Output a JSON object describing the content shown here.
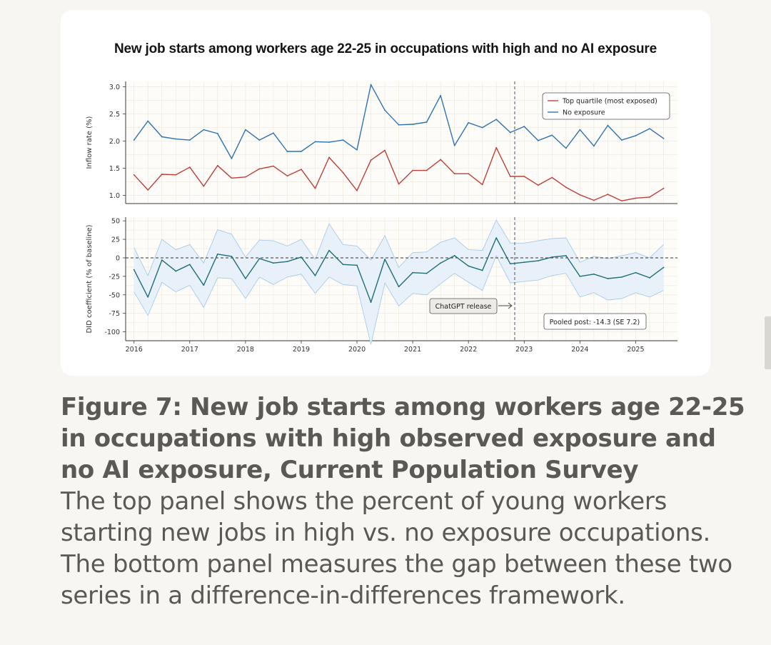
{
  "figure_caption": {
    "title": "Figure 7: New job starts among workers age 22-25 in occupations with high observed exposure and no AI exposure, Current Population Survey",
    "body": "The top panel shows the percent of young workers starting new jobs in high vs. no exposure occupations. The bottom panel measures the gap between these two series in a difference-in-differences framework."
  },
  "colors": {
    "background": "#f8f6f2",
    "card": "#ffffff",
    "top_quartile": "#c0403a",
    "no_exposure": "#2f73b3",
    "did_line": "#1f6e77",
    "ci_band": "#e8f1fa",
    "ci_edge": "#a8cbe8",
    "grid": "#ece7da",
    "axis": "#3a3a3a"
  },
  "chart_data": [
    {
      "type": "line",
      "title": "New job starts among workers age 22-25 in occupations with high and no AI exposure",
      "xlabel": "",
      "ylabel": "Inflow rate (%)",
      "xlim": [
        2015.85,
        2025.75
      ],
      "ylim": [
        0.85,
        3.1
      ],
      "yticks": [
        1.0,
        1.5,
        2.0,
        2.5,
        3.0
      ],
      "ytick_labels": [
        "1.0",
        "1.5",
        "2.0",
        "2.5",
        "3.0"
      ],
      "grid": true,
      "legend_position": "top-right",
      "x": [
        2016.0,
        2016.25,
        2016.5,
        2016.75,
        2017.0,
        2017.25,
        2017.5,
        2017.75,
        2018.0,
        2018.25,
        2018.5,
        2018.75,
        2019.0,
        2019.25,
        2019.5,
        2019.75,
        2020.0,
        2020.25,
        2020.5,
        2020.75,
        2021.0,
        2021.25,
        2021.5,
        2021.75,
        2022.0,
        2022.25,
        2022.5,
        2022.75,
        2023.0,
        2023.25,
        2023.5,
        2023.75,
        2024.0,
        2024.25,
        2024.5,
        2024.75,
        2025.0,
        2025.25,
        2025.5
      ],
      "series": [
        {
          "name": "Top quartile (most exposed)",
          "color": "#c0403a",
          "values": [
            1.38,
            1.1,
            1.39,
            1.38,
            1.52,
            1.17,
            1.55,
            1.32,
            1.34,
            1.49,
            1.54,
            1.36,
            1.48,
            1.13,
            1.7,
            1.42,
            1.09,
            1.65,
            1.83,
            1.21,
            1.46,
            1.46,
            1.66,
            1.4,
            1.4,
            1.2,
            1.88,
            1.35,
            1.35,
            1.19,
            1.33,
            1.15,
            1.01,
            0.91,
            1.02,
            0.9,
            0.95,
            0.97,
            1.13
          ]
        },
        {
          "name": "No exposure",
          "color": "#2f73b3",
          "values": [
            2.02,
            2.37,
            2.08,
            2.04,
            2.02,
            2.21,
            2.14,
            1.68,
            2.21,
            2.02,
            2.15,
            1.81,
            1.81,
            1.99,
            1.98,
            2.02,
            1.84,
            3.04,
            2.57,
            2.3,
            2.31,
            2.35,
            2.84,
            1.92,
            2.34,
            2.25,
            2.4,
            2.16,
            2.27,
            2.01,
            2.11,
            1.87,
            2.21,
            1.91,
            2.29,
            2.02,
            2.1,
            2.23,
            2.05
          ]
        }
      ]
    },
    {
      "type": "line",
      "xlabel": "",
      "ylabel": "DID coefficient (% of baseline)",
      "xlim": [
        2015.85,
        2025.75
      ],
      "ylim": [
        -112,
        55
      ],
      "yticks": [
        50,
        25,
        0,
        -25,
        -50,
        -75,
        -100
      ],
      "ytick_labels": [
        "50",
        "25",
        "0",
        "-25",
        "-50",
        "-75",
        "-100"
      ],
      "xticks": [
        2016,
        2017,
        2018,
        2019,
        2020,
        2021,
        2022,
        2023,
        2024,
        2025
      ],
      "xtick_labels": [
        "2016",
        "2017",
        "2018",
        "2019",
        "2020",
        "2021",
        "2022",
        "2023",
        "2024",
        "2025"
      ],
      "grid": true,
      "x": [
        2016.0,
        2016.25,
        2016.5,
        2016.75,
        2017.0,
        2017.25,
        2017.5,
        2017.75,
        2018.0,
        2018.25,
        2018.5,
        2018.75,
        2019.0,
        2019.25,
        2019.5,
        2019.75,
        2020.0,
        2020.25,
        2020.5,
        2020.75,
        2021.0,
        2021.25,
        2021.5,
        2021.75,
        2022.0,
        2022.25,
        2022.5,
        2022.75,
        2023.0,
        2023.25,
        2023.5,
        2023.75,
        2024.0,
        2024.25,
        2024.5,
        2024.75,
        2025.0,
        2025.25,
        2025.5
      ],
      "series": [
        {
          "name": "DID coefficient",
          "color": "#1f6e77",
          "values": [
            -16,
            -53,
            -3,
            -18,
            -9,
            -37,
            5,
            2,
            -28,
            -1,
            -7,
            -5,
            1,
            -24,
            10,
            -9,
            -10,
            -60,
            -2,
            -39,
            -20,
            -21,
            -7,
            3,
            -11,
            -17,
            27,
            -8,
            -6,
            -4,
            1,
            3,
            -25,
            -22,
            -28,
            -26,
            -20,
            -27,
            -13
          ]
        },
        {
          "name": "CI upper",
          "values": [
            14,
            -24,
            25,
            11,
            18,
            -7,
            38,
            32,
            1,
            24,
            23,
            16,
            25,
            -2,
            46,
            18,
            16,
            -3,
            30,
            -13,
            7,
            8,
            21,
            27,
            11,
            10,
            51,
            20,
            20,
            23,
            26,
            27,
            -6,
            2,
            -1,
            3,
            7,
            0,
            18
          ]
        },
        {
          "name": "CI lower",
          "values": [
            -46,
            -78,
            -33,
            -46,
            -37,
            -67,
            -27,
            -28,
            -55,
            -26,
            -36,
            -26,
            -22,
            -48,
            -26,
            -36,
            -38,
            -117,
            -34,
            -65,
            -48,
            -50,
            -35,
            -21,
            -33,
            -44,
            3,
            -34,
            -32,
            -30,
            -24,
            -21,
            -53,
            -47,
            -57,
            -55,
            -47,
            -53,
            -44
          ]
        }
      ],
      "reference_line": {
        "x": 2022.83,
        "label": "ChatGPT release"
      },
      "annotation": "Pooled post: -14.3 (SE 7.2)"
    }
  ]
}
